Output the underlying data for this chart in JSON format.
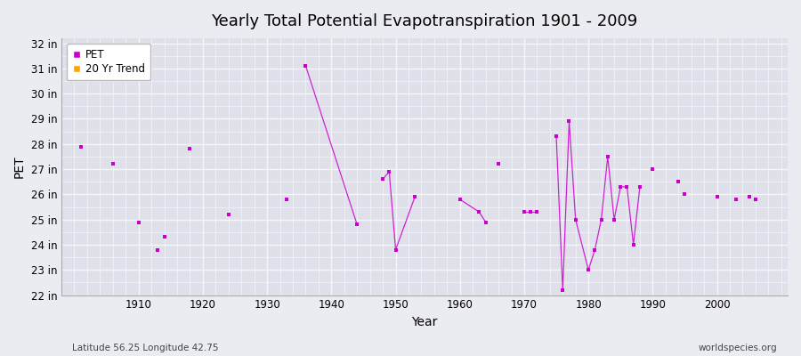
{
  "title": "Yearly Total Potential Evapotranspiration 1901 - 2009",
  "xlabel": "Year",
  "ylabel": "PET",
  "subtitle_left": "Latitude 56.25 Longitude 42.75",
  "subtitle_right": "worldspecies.org",
  "background_color": "#ebebf2",
  "plot_bg_color": "#e0e0ea",
  "grid_color": "#f5f5fa",
  "pet_color": "#cc00cc",
  "trend_color": "#ffa500",
  "ylim": [
    22,
    32.2
  ],
  "yticks": [
    22,
    23,
    24,
    25,
    26,
    27,
    28,
    29,
    30,
    31,
    32
  ],
  "ytick_labels": [
    "22 in",
    "23 in",
    "24 in",
    "25 in",
    "26 in",
    "27 in",
    "28 in",
    "29 in",
    "30 in",
    "31 in",
    "32 in"
  ],
  "xlim": [
    1898,
    2011
  ],
  "xticks": [
    1910,
    1920,
    1930,
    1940,
    1950,
    1960,
    1970,
    1980,
    1990,
    2000
  ],
  "pet_data": [
    [
      1901,
      27.9
    ],
    [
      1906,
      27.2
    ],
    [
      1910,
      24.9
    ],
    [
      1913,
      23.8
    ],
    [
      1914,
      24.3
    ],
    [
      1918,
      27.8
    ],
    [
      1924,
      25.2
    ],
    [
      1933,
      25.8
    ],
    [
      1936,
      31.1
    ],
    [
      1944,
      24.8
    ],
    [
      1948,
      26.6
    ],
    [
      1949,
      26.9
    ],
    [
      1950,
      23.8
    ],
    [
      1953,
      25.9
    ],
    [
      1960,
      25.8
    ],
    [
      1963,
      25.3
    ],
    [
      1964,
      24.9
    ],
    [
      1966,
      27.2
    ],
    [
      1970,
      25.3
    ],
    [
      1971,
      25.3
    ],
    [
      1972,
      25.3
    ],
    [
      1975,
      28.3
    ],
    [
      1976,
      22.2
    ],
    [
      1977,
      28.9
    ],
    [
      1978,
      25.0
    ],
    [
      1980,
      23.0
    ],
    [
      1981,
      23.8
    ],
    [
      1982,
      25.0
    ],
    [
      1983,
      27.5
    ],
    [
      1984,
      25.0
    ],
    [
      1985,
      26.3
    ],
    [
      1986,
      26.3
    ],
    [
      1987,
      24.0
    ],
    [
      1988,
      26.3
    ],
    [
      1990,
      27.0
    ],
    [
      1994,
      26.5
    ],
    [
      1995,
      26.0
    ],
    [
      2000,
      25.9
    ],
    [
      2003,
      25.8
    ],
    [
      2005,
      25.9
    ],
    [
      2006,
      25.8
    ]
  ],
  "connected_groups": [
    [
      1948,
      1949,
      1950,
      1953
    ],
    [
      1960,
      1963,
      1964
    ],
    [
      1970,
      1971,
      1972
    ],
    [
      1975,
      1976,
      1977,
      1978,
      1980,
      1981,
      1982,
      1983,
      1984,
      1985,
      1986,
      1987,
      1988
    ]
  ]
}
